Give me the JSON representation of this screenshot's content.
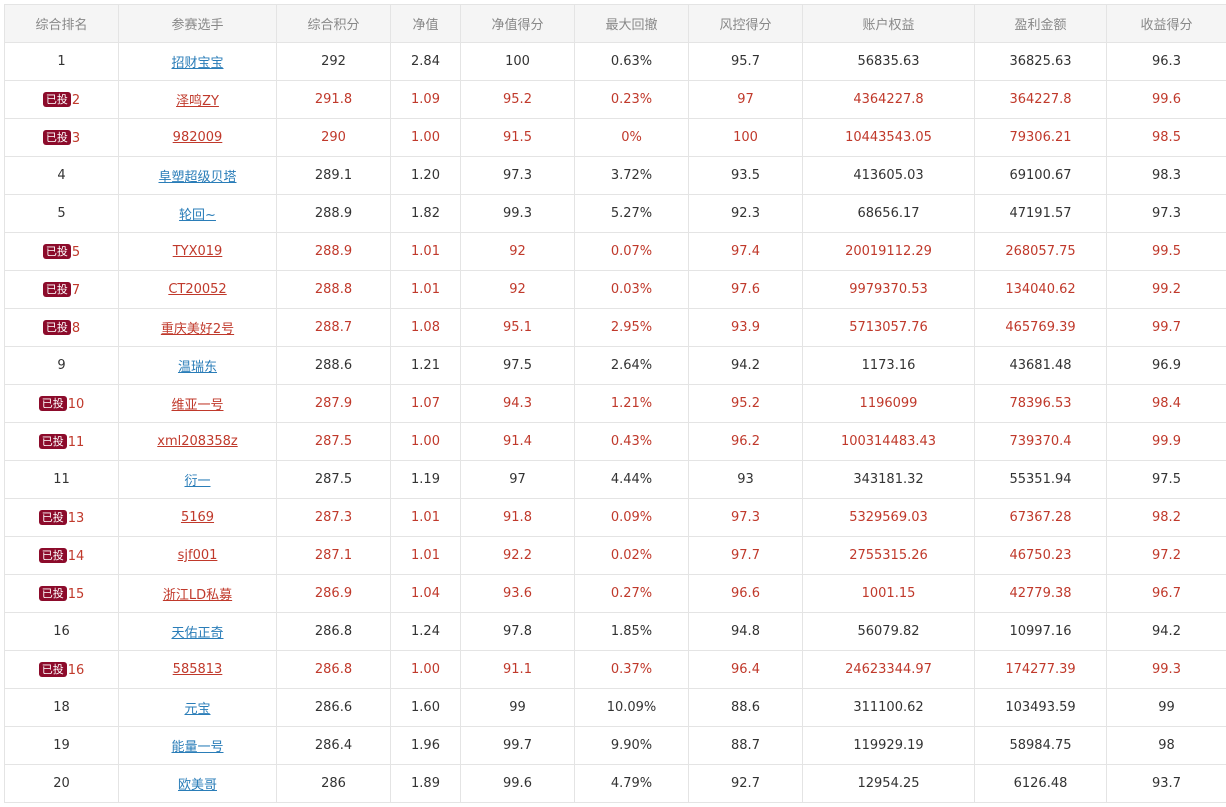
{
  "headers": [
    "综合排名",
    "参赛选手",
    "综合积分",
    "净值",
    "净值得分",
    "最大回撤",
    "风控得分",
    "账户权益",
    "盈利金额",
    "收益得分"
  ],
  "badge_label": "已投",
  "colors": {
    "invested_text": "#c0392b",
    "badge_bg": "#8c0b2b",
    "link": "#2a7db8",
    "header_bg": "#f5f5f5"
  },
  "rows": [
    {
      "rank": "1",
      "invested": false,
      "player": "招财宝宝",
      "score": "292",
      "nav": "2.84",
      "nav_score": "100",
      "drawdown": "0.63%",
      "risk_score": "95.7",
      "equity": "56835.63",
      "profit": "36825.63",
      "return_score": "96.3"
    },
    {
      "rank": "2",
      "invested": true,
      "player": "泽鸣ZY",
      "score": "291.8",
      "nav": "1.09",
      "nav_score": "95.2",
      "drawdown": "0.23%",
      "risk_score": "97",
      "equity": "4364227.8",
      "profit": "364227.8",
      "return_score": "99.6"
    },
    {
      "rank": "3",
      "invested": true,
      "player": "982009",
      "score": "290",
      "nav": "1.00",
      "nav_score": "91.5",
      "drawdown": "0%",
      "risk_score": "100",
      "equity": "10443543.05",
      "profit": "79306.21",
      "return_score": "98.5"
    },
    {
      "rank": "4",
      "invested": false,
      "player": "阜塑超级贝塔",
      "score": "289.1",
      "nav": "1.20",
      "nav_score": "97.3",
      "drawdown": "3.72%",
      "risk_score": "93.5",
      "equity": "413605.03",
      "profit": "69100.67",
      "return_score": "98.3"
    },
    {
      "rank": "5",
      "invested": false,
      "player": "轮回~",
      "score": "288.9",
      "nav": "1.82",
      "nav_score": "99.3",
      "drawdown": "5.27%",
      "risk_score": "92.3",
      "equity": "68656.17",
      "profit": "47191.57",
      "return_score": "97.3"
    },
    {
      "rank": "5",
      "invested": true,
      "player": "TYX019",
      "score": "288.9",
      "nav": "1.01",
      "nav_score": "92",
      "drawdown": "0.07%",
      "risk_score": "97.4",
      "equity": "20019112.29",
      "profit": "268057.75",
      "return_score": "99.5"
    },
    {
      "rank": "7",
      "invested": true,
      "player": "CT20052",
      "score": "288.8",
      "nav": "1.01",
      "nav_score": "92",
      "drawdown": "0.03%",
      "risk_score": "97.6",
      "equity": "9979370.53",
      "profit": "134040.62",
      "return_score": "99.2"
    },
    {
      "rank": "8",
      "invested": true,
      "player": "重庆美好2号",
      "score": "288.7",
      "nav": "1.08",
      "nav_score": "95.1",
      "drawdown": "2.95%",
      "risk_score": "93.9",
      "equity": "5713057.76",
      "profit": "465769.39",
      "return_score": "99.7"
    },
    {
      "rank": "9",
      "invested": false,
      "player": "温瑞东",
      "score": "288.6",
      "nav": "1.21",
      "nav_score": "97.5",
      "drawdown": "2.64%",
      "risk_score": "94.2",
      "equity": "1173.16",
      "profit": "43681.48",
      "return_score": "96.9"
    },
    {
      "rank": "10",
      "invested": true,
      "player": "维亚一号",
      "score": "287.9",
      "nav": "1.07",
      "nav_score": "94.3",
      "drawdown": "1.21%",
      "risk_score": "95.2",
      "equity": "1196099",
      "profit": "78396.53",
      "return_score": "98.4"
    },
    {
      "rank": "11",
      "invested": true,
      "player": "xml208358z",
      "score": "287.5",
      "nav": "1.00",
      "nav_score": "91.4",
      "drawdown": "0.43%",
      "risk_score": "96.2",
      "equity": "100314483.43",
      "profit": "739370.4",
      "return_score": "99.9"
    },
    {
      "rank": "11",
      "invested": false,
      "player": "衍一",
      "score": "287.5",
      "nav": "1.19",
      "nav_score": "97",
      "drawdown": "4.44%",
      "risk_score": "93",
      "equity": "343181.32",
      "profit": "55351.94",
      "return_score": "97.5"
    },
    {
      "rank": "13",
      "invested": true,
      "player": "5169",
      "score": "287.3",
      "nav": "1.01",
      "nav_score": "91.8",
      "drawdown": "0.09%",
      "risk_score": "97.3",
      "equity": "5329569.03",
      "profit": "67367.28",
      "return_score": "98.2"
    },
    {
      "rank": "14",
      "invested": true,
      "player": "sjf001",
      "score": "287.1",
      "nav": "1.01",
      "nav_score": "92.2",
      "drawdown": "0.02%",
      "risk_score": "97.7",
      "equity": "2755315.26",
      "profit": "46750.23",
      "return_score": "97.2"
    },
    {
      "rank": "15",
      "invested": true,
      "player": "浙江LD私募",
      "score": "286.9",
      "nav": "1.04",
      "nav_score": "93.6",
      "drawdown": "0.27%",
      "risk_score": "96.6",
      "equity": "1001.15",
      "profit": "42779.38",
      "return_score": "96.7"
    },
    {
      "rank": "16",
      "invested": false,
      "player": "天佑正奇",
      "score": "286.8",
      "nav": "1.24",
      "nav_score": "97.8",
      "drawdown": "1.85%",
      "risk_score": "94.8",
      "equity": "56079.82",
      "profit": "10997.16",
      "return_score": "94.2"
    },
    {
      "rank": "16",
      "invested": true,
      "player": "585813",
      "score": "286.8",
      "nav": "1.00",
      "nav_score": "91.1",
      "drawdown": "0.37%",
      "risk_score": "96.4",
      "equity": "24623344.97",
      "profit": "174277.39",
      "return_score": "99.3"
    },
    {
      "rank": "18",
      "invested": false,
      "player": "元宝",
      "score": "286.6",
      "nav": "1.60",
      "nav_score": "99",
      "drawdown": "10.09%",
      "risk_score": "88.6",
      "equity": "311100.62",
      "profit": "103493.59",
      "return_score": "99"
    },
    {
      "rank": "19",
      "invested": false,
      "player": "能量一号",
      "score": "286.4",
      "nav": "1.96",
      "nav_score": "99.7",
      "drawdown": "9.90%",
      "risk_score": "88.7",
      "equity": "119929.19",
      "profit": "58984.75",
      "return_score": "98"
    },
    {
      "rank": "20",
      "invested": false,
      "player": "欧美哥",
      "score": "286",
      "nav": "1.89",
      "nav_score": "99.6",
      "drawdown": "4.79%",
      "risk_score": "92.7",
      "equity": "12954.25",
      "profit": "6126.48",
      "return_score": "93.7"
    }
  ]
}
